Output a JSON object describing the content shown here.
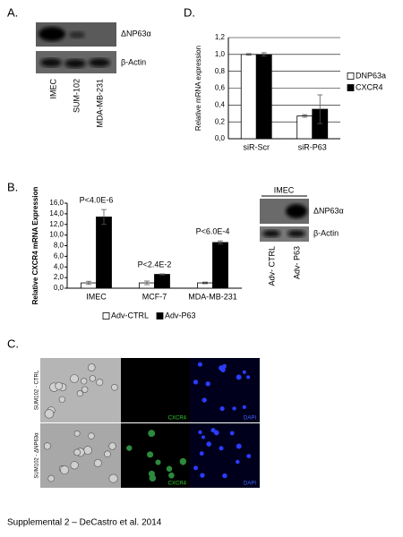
{
  "panel_a": {
    "label": "A.",
    "bands": [
      "ΔNP63α",
      "β-Actin"
    ],
    "lanes": [
      "IMEC",
      "SUM-102",
      "MDA-MB-231"
    ]
  },
  "chart_data": [
    {
      "type": "bar",
      "label": "D.",
      "y_label": "Relative mRNA expression",
      "categories": [
        "siR-Scr",
        "siR-P63"
      ],
      "series": [
        {
          "name": "DNP63a",
          "color": "#ffffff",
          "values": [
            1.0,
            0.27
          ],
          "errors": [
            0.01,
            0.015
          ]
        },
        {
          "name": "CXCR4",
          "color": "#000000",
          "values": [
            1.0,
            0.35
          ],
          "errors": [
            0.02,
            0.17
          ]
        }
      ],
      "ylim": [
        0,
        1.2
      ],
      "yticks": [
        {
          "value": 0,
          "label": "0,0"
        },
        {
          "value": 0.2,
          "label": "0,2"
        },
        {
          "value": 0.4,
          "label": "0,4"
        },
        {
          "value": 0.6,
          "label": "0,6"
        },
        {
          "value": 0.8,
          "label": "0,8"
        },
        {
          "value": 1,
          "label": "1,0"
        },
        {
          "value": 1.2,
          "label": "1,2"
        }
      ],
      "grid": true,
      "legend": "right"
    },
    {
      "type": "bar",
      "label": "B.",
      "y_label": "Relative CXCR4 mRNA Expression",
      "categories": [
        "IMEC",
        "MCF-7",
        "MDA-MB-231"
      ],
      "series": [
        {
          "name": "Adv-CTRL",
          "color": "#ffffff",
          "values": [
            1.0,
            1.0,
            1.0
          ],
          "errors": [
            0.3,
            0.35,
            0.15
          ]
        },
        {
          "name": "Adv-P63",
          "color": "#000000",
          "values": [
            13.4,
            2.6,
            8.6
          ],
          "errors": [
            1.4,
            0.1,
            0.3
          ]
        }
      ],
      "annotations": [
        "P<4.0E-6",
        "P<2.4E-2",
        "P<6.0E-4"
      ],
      "ylim": [
        0,
        16
      ],
      "yticks": [
        {
          "value": 0,
          "label": "0,0"
        },
        {
          "value": 2,
          "label": "2,0"
        },
        {
          "value": 4,
          "label": "4,0"
        },
        {
          "value": 6,
          "label": "6,0"
        },
        {
          "value": 8,
          "label": "8,0"
        },
        {
          "value": 10,
          "label": "10,0"
        },
        {
          "value": 12,
          "label": "12,0"
        },
        {
          "value": 14,
          "label": "14,0"
        },
        {
          "value": 16,
          "label": "16,0"
        }
      ],
      "grid": false,
      "legend": "bottom"
    }
  ],
  "panel_b_inset": {
    "title": "IMEC",
    "bands": [
      "ΔNP63α",
      "β-Actin"
    ],
    "lanes": [
      "Adv- CTRL",
      "Adv- P63"
    ]
  },
  "panel_c": {
    "label": "C.",
    "rows": [
      "SUM102 - CTRL",
      "SUM102 - ΔNP63α"
    ],
    "channels": [
      "CXCR4",
      "DAPI"
    ]
  },
  "footer": "Supplemental 2 – DeCastro et al. 2014"
}
